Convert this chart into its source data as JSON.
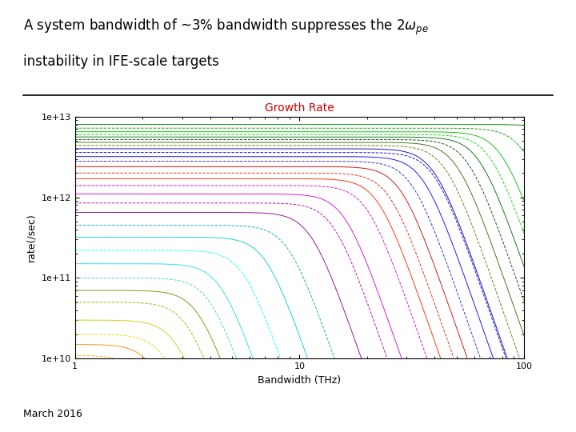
{
  "plot_title": "Growth Rate",
  "xlabel": "Bandwidth (THz)",
  "ylabel": "rate(/sec)",
  "xlim": [
    1,
    100
  ],
  "ylim": [
    10000000000.0,
    10000000000000.0
  ],
  "background_color": "#ffffff",
  "plot_bg_color": "#ffffff",
  "title_color": "#cc0000",
  "main_title_color": "#000000",
  "footer_text": "March 2016",
  "colors": [
    "#007700",
    "#009900",
    "#00bb00",
    "#00dd00",
    "#006600",
    "#004400",
    "#336600",
    "#557700",
    "#0000bb",
    "#0000dd",
    "#0000ff",
    "#2222cc",
    "#cc0000",
    "#dd2200",
    "#ff2200",
    "#cc00cc",
    "#dd00dd",
    "#aa00aa",
    "#880088",
    "#00aaaa",
    "#00cccc",
    "#00ffff",
    "#22dddd",
    "#44cccc",
    "#888800",
    "#aaaa00",
    "#cccc00",
    "#dddd00",
    "#ff8800",
    "#ffaa00",
    "#000000",
    "#222222",
    "#444444",
    "#666666",
    "#004466",
    "#006688",
    "#0088aa",
    "#884400",
    "#aa5500"
  ],
  "curve_params": [
    [
      8000000000000.0,
      1.5,
      2.2,
      "-"
    ],
    [
      7200000000000.0,
      1.5,
      2.0,
      "--"
    ],
    [
      6500000000000.0,
      1.5,
      1.9,
      "-"
    ],
    [
      6000000000000.0,
      1.5,
      1.85,
      "--"
    ],
    [
      5600000000000.0,
      1.5,
      1.8,
      "-"
    ],
    [
      5200000000000.0,
      1.5,
      1.75,
      "--"
    ],
    [
      4800000000000.0,
      1.5,
      1.7,
      "-"
    ],
    [
      4400000000000.0,
      1.5,
      1.65,
      "--"
    ],
    [
      4000000000000.0,
      1.5,
      1.6,
      "-"
    ],
    [
      3600000000000.0,
      1.5,
      1.6,
      "--"
    ],
    [
      3200000000000.0,
      1.5,
      1.55,
      "-"
    ],
    [
      2800000000000.0,
      1.5,
      1.5,
      "--"
    ],
    [
      2400000000000.0,
      1.5,
      1.45,
      "-"
    ],
    [
      2000000000000.0,
      1.5,
      1.4,
      "--"
    ],
    [
      1700000000000.0,
      1.5,
      1.35,
      "-"
    ],
    [
      1400000000000.0,
      1.5,
      1.3,
      "--"
    ],
    [
      1100000000000.0,
      1.5,
      1.2,
      "-"
    ],
    [
      850000000000.0,
      1.5,
      1.15,
      "--"
    ],
    [
      650000000000.0,
      1.5,
      1.05,
      "-"
    ],
    [
      450000000000.0,
      1.5,
      0.95,
      "--"
    ],
    [
      320000000000.0,
      1.5,
      0.85,
      "-"
    ],
    [
      220000000000.0,
      1.5,
      0.75,
      "--"
    ],
    [
      150000000000.0,
      1.5,
      0.65,
      "-"
    ],
    [
      100000000000.0,
      1.5,
      0.6,
      "--"
    ],
    [
      70000000000.0,
      1.0,
      0.55,
      "-"
    ],
    [
      50000000000.0,
      1.0,
      0.5,
      "--"
    ],
    [
      30000000000.0,
      1.0,
      0.45,
      "-"
    ],
    [
      20000000000.0,
      1.0,
      0.4,
      "--"
    ],
    [
      15000000000.0,
      1.0,
      0.35,
      "-"
    ],
    [
      11000000000.0,
      1.0,
      0.3,
      "--"
    ]
  ]
}
